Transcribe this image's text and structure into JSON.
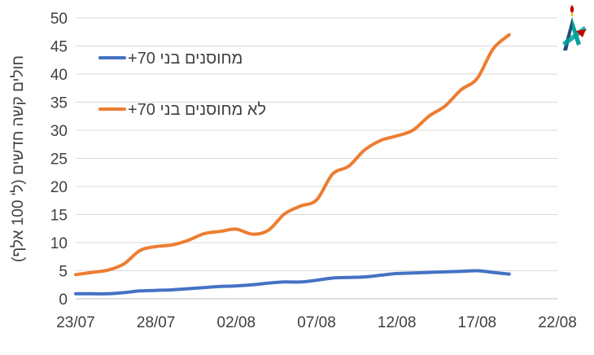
{
  "chart_data": {
    "type": "line",
    "ylabel": "חולים קשה חדשים (ל' 100 אלף)",
    "xlabel": "",
    "title": "",
    "x_tick_labels": [
      "23/07",
      "28/07",
      "02/08",
      "07/08",
      "12/08",
      "17/08",
      "22/08"
    ],
    "x_range": [
      "23/07",
      "22/08"
    ],
    "ylim": [
      0,
      50
    ],
    "y_ticks": [
      0,
      5,
      10,
      15,
      20,
      25,
      30,
      35,
      40,
      45,
      50
    ],
    "grid": "horizontal",
    "legend_position": "top-left",
    "x": [
      "23/07",
      "24/07",
      "25/07",
      "26/07",
      "27/07",
      "28/07",
      "29/07",
      "30/07",
      "31/07",
      "01/08",
      "02/08",
      "03/08",
      "04/08",
      "05/08",
      "06/08",
      "07/08",
      "08/08",
      "09/08",
      "10/08",
      "11/08",
      "12/08",
      "13/08",
      "14/08",
      "15/08",
      "16/08",
      "17/08",
      "18/08",
      "19/08"
    ],
    "series": [
      {
        "name": "מחוסנים בני 70+",
        "color": "#4472c4",
        "values": [
          0.9,
          0.9,
          0.9,
          1.1,
          1.4,
          1.5,
          1.6,
          1.8,
          2.0,
          2.2,
          2.3,
          2.5,
          2.8,
          3.0,
          3.0,
          3.3,
          3.7,
          3.8,
          3.9,
          4.2,
          4.5,
          4.6,
          4.7,
          4.8,
          4.9,
          5.0,
          4.7,
          4.4
        ]
      },
      {
        "name": "לא מחוסנים בני 70+",
        "color": "#ed7d31",
        "values": [
          4.3,
          4.7,
          5.1,
          6.2,
          8.6,
          9.3,
          9.6,
          10.4,
          11.6,
          12.0,
          12.4,
          11.5,
          12.2,
          15.1,
          16.5,
          17.6,
          22.2,
          23.6,
          26.5,
          28.2,
          29.0,
          30.0,
          32.5,
          34.3,
          37.2,
          39.2,
          44.5,
          47.0
        ]
      }
    ]
  },
  "logo": {
    "icon": "candle-flame-logo-icon",
    "colors": [
      "#c00000",
      "#f2b800",
      "#1f4e79",
      "#00a19a"
    ]
  }
}
